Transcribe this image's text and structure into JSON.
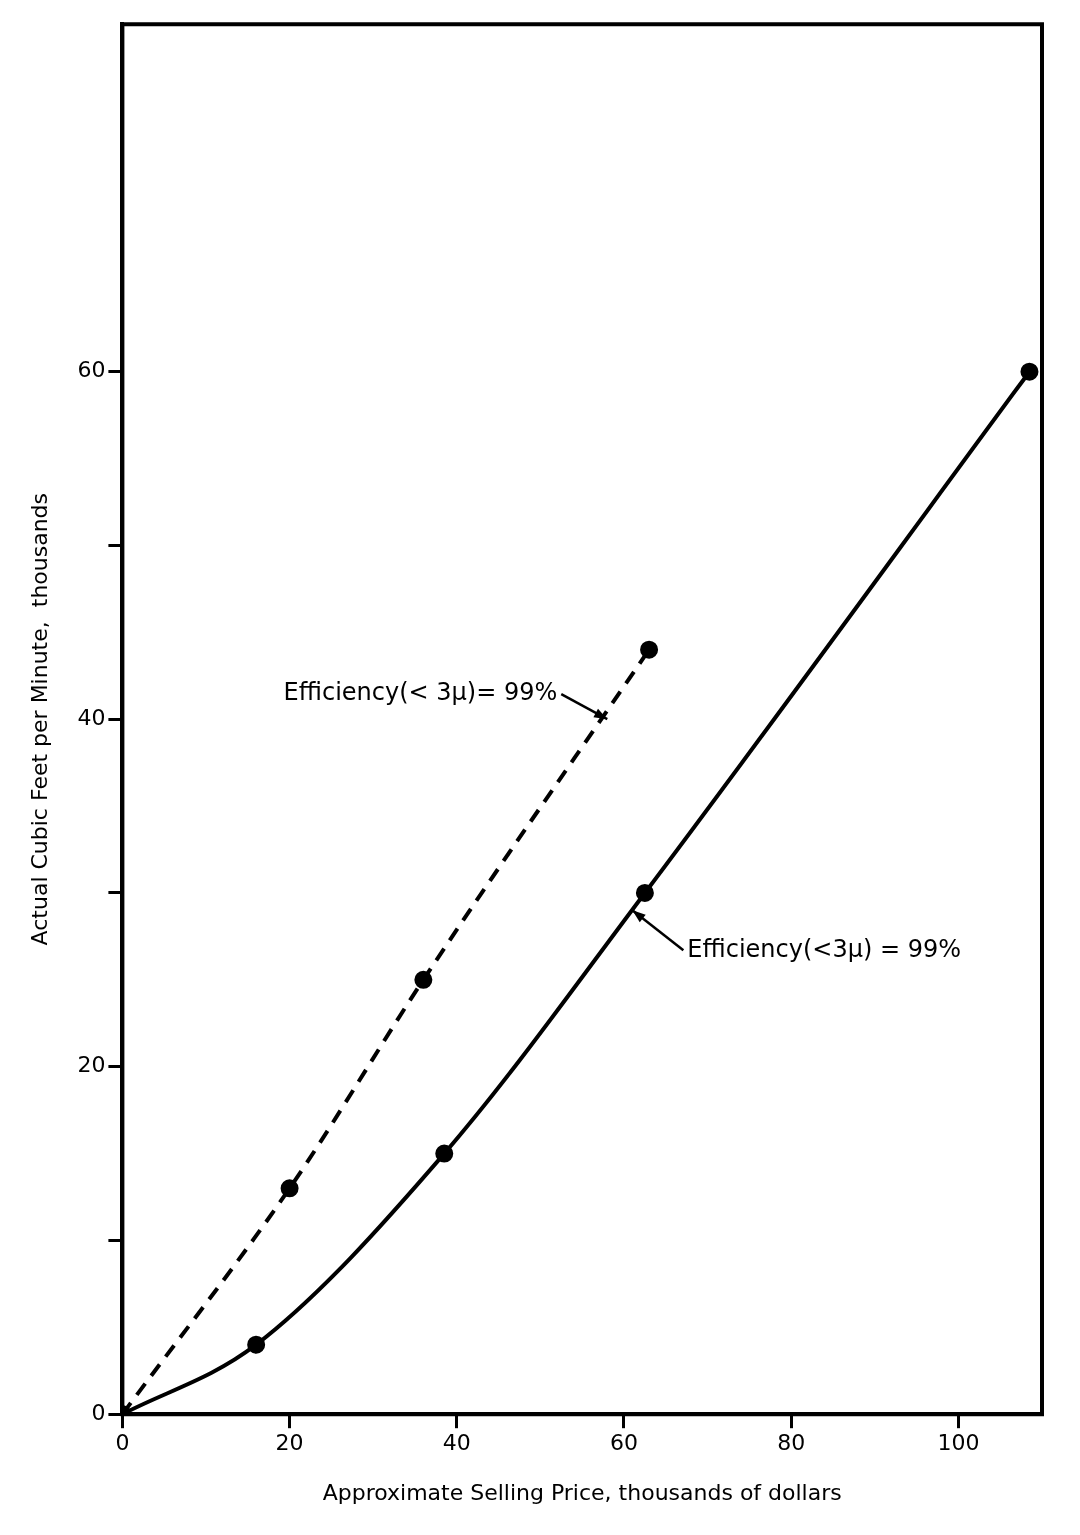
{
  "chart_data": {
    "type": "line",
    "xlabel": "Approximate Selling Price, thousands of dollars",
    "ylabel": "Actual Cubic Feet per Minute,  thousands",
    "series": [
      {
        "color": "#000000",
        "x": [
          0,
          16,
          38.5,
          62.5,
          108.5
        ],
        "values": [
          0,
          4,
          15,
          30,
          60
        ],
        "line_style": "solid"
      },
      {
        "color": "#000000",
        "x": [
          0,
          20,
          36,
          63
        ],
        "values": [
          0,
          13,
          25,
          44
        ],
        "line_style": "dashed"
      }
    ],
    "annotations": [
      {
        "text": "Efficiency(< 3μ)= 99%",
        "x": 58,
        "y": 40
      },
      {
        "text": "Efficiency(<3μ) = 99%",
        "x": 61,
        "y": 29
      }
    ],
    "marker": "circle",
    "grid": false,
    "legend": false,
    "xlim": [
      0,
      110
    ],
    "xticks": [
      0,
      20,
      40,
      60,
      80,
      100
    ],
    "ylim": [
      0,
      80
    ],
    "yticks": [
      0,
      {
        "value": 10,
        "label": null
      },
      20,
      {
        "value": 30,
        "label": null
      },
      40,
      {
        "value": 50,
        "label": null
      },
      60
    ]
  }
}
